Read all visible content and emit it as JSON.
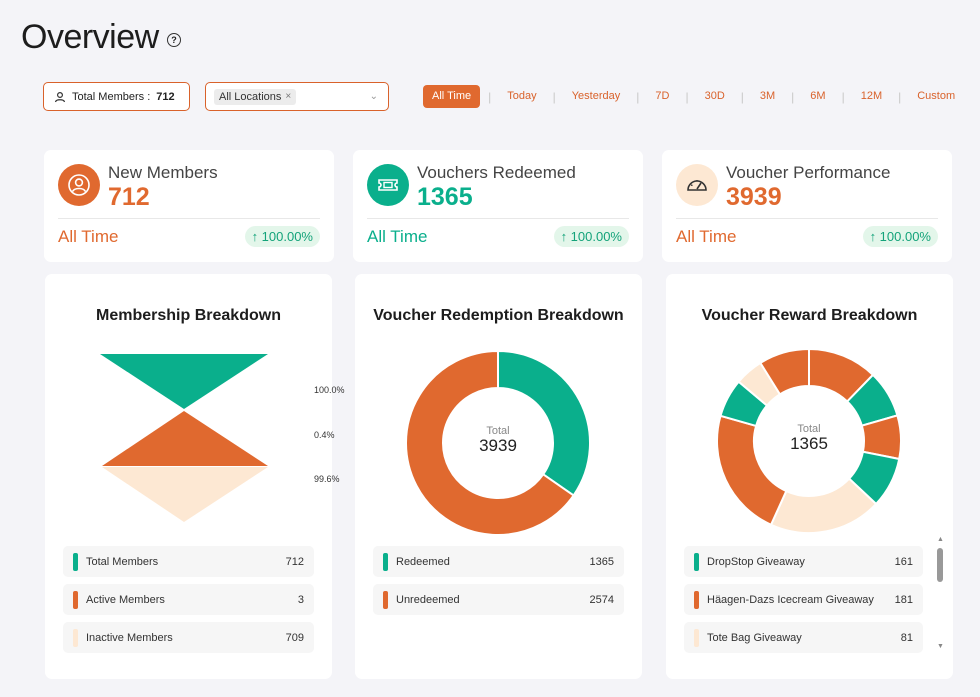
{
  "header": {
    "title": "Overview",
    "help_icon": "question-circle-icon"
  },
  "filters": {
    "members_label": "Total Members :",
    "members_value": "712",
    "location_chip": "All Locations",
    "location_chip_remove": "×",
    "time_tabs": [
      "All Time",
      "Today",
      "Yesterday",
      "7D",
      "30D",
      "3M",
      "6M",
      "12M",
      "Custom"
    ],
    "active_tab": "All Time"
  },
  "colors": {
    "accent_orange": "#e0692f",
    "teal": "#0aaf8c",
    "peach": "#fde8d3",
    "growth_bg": "#e3f6ea"
  },
  "kpis": [
    {
      "label": "New Members",
      "value": "712",
      "period": "All Time",
      "change": "↑ 100.00%",
      "icon": "user-circle-icon",
      "value_color": "#e0692f",
      "circle_bg": "#e0692f"
    },
    {
      "label": "Vouchers Redeemed",
      "value": "1365",
      "period": "All Time",
      "change": "↑ 100.00%",
      "icon": "ticket-icon",
      "value_color": "#0aaf8c",
      "circle_bg": "#0aaf8c"
    },
    {
      "label": "Voucher Performance",
      "value": "3939",
      "period": "All Time",
      "change": "↑ 100.00%",
      "icon": "gauge-icon",
      "value_color": "#e0692f",
      "circle_bg": "#fde8d3"
    }
  ],
  "panels": {
    "membership": {
      "title": "Membership Breakdown",
      "funnel_pcts": [
        "100.0%",
        "0.4%",
        "99.6%"
      ],
      "legend": [
        {
          "label": "Total Members",
          "value": "712",
          "color": "#0aaf8c"
        },
        {
          "label": "Active Members",
          "value": "3",
          "color": "#e0692f"
        },
        {
          "label": "Inactive Members",
          "value": "709",
          "color": "#fde8d3"
        }
      ]
    },
    "redemption": {
      "title": "Voucher Redemption Breakdown",
      "total_label": "Total",
      "total_value": "3939",
      "legend": [
        {
          "label": "Redeemed",
          "value": "1365",
          "color": "#0aaf8c"
        },
        {
          "label": "Unredeemed",
          "value": "2574",
          "color": "#e0692f"
        }
      ]
    },
    "reward": {
      "title": "Voucher Reward Breakdown",
      "total_label": "Total",
      "total_value": "1365",
      "legend": [
        {
          "label": "DropStop Giveaway",
          "value": "161",
          "color": "#0aaf8c"
        },
        {
          "label": "Häagen-Dazs Icecream Giveaway",
          "value": "181",
          "color": "#e0692f"
        },
        {
          "label": "Tote Bag Giveaway",
          "value": "81",
          "color": "#fde8d3"
        }
      ]
    }
  },
  "chart_data": [
    {
      "type": "funnel",
      "title": "Membership Breakdown",
      "categories": [
        "Total Members",
        "Active Members",
        "Inactive Members"
      ],
      "values": [
        712,
        3,
        709
      ],
      "percentages": [
        100.0,
        0.4,
        99.6
      ]
    },
    {
      "type": "pie",
      "title": "Voucher Redemption Breakdown",
      "categories": [
        "Redeemed",
        "Unredeemed"
      ],
      "values": [
        1365,
        2574
      ],
      "total": 3939
    },
    {
      "type": "pie",
      "title": "Voucher Reward Breakdown",
      "total": 1365,
      "slices": [
        {
          "category": "",
          "value": 167,
          "color": "#e0692f"
        },
        {
          "category": "",
          "value": 113,
          "color": "#0aaf8c"
        },
        {
          "category": "",
          "value": 104,
          "color": "#e0692f"
        },
        {
          "category": "",
          "value": 121,
          "color": "#0aaf8c"
        },
        {
          "category": "",
          "value": 270,
          "color": "#fde8d3"
        },
        {
          "category": "",
          "value": 309,
          "color": "#e0692f"
        },
        {
          "category": "",
          "value": 92,
          "color": "#0aaf8c"
        },
        {
          "category": "",
          "value": 68,
          "color": "#fde8d3"
        },
        {
          "category": "",
          "value": 121,
          "color": "#e0692f"
        }
      ]
    }
  ]
}
